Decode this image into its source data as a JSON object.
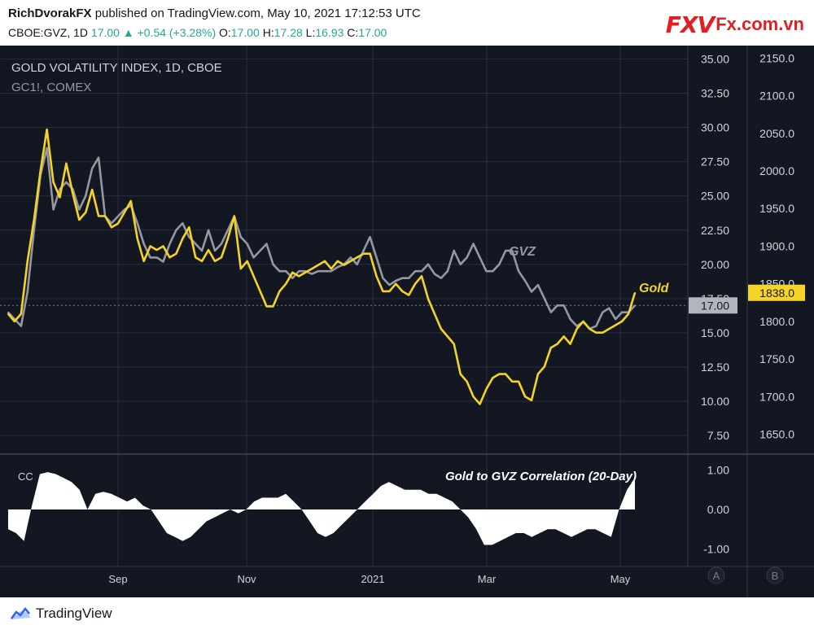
{
  "header": {
    "author": "RichDvorakFX",
    "published_text": "published on TradingView.com, May 10, 2021 17:12:53 UTC",
    "symbol": "CBOE:GVZ, 1D",
    "last": "17.00",
    "change": "+0.54 (+3.28%)",
    "o_label": "O:",
    "o_value": "17.00",
    "h_label": "H:",
    "h_value": "17.28",
    "l_label": "L:",
    "l_value": "16.93",
    "c_label": "C:",
    "c_value": "17.00"
  },
  "logo": {
    "brand": "FXV",
    "site": "Fx.com.vn"
  },
  "footer": {
    "brand": "TradingView"
  },
  "colors": {
    "gold": "#f5d327",
    "gvz": "#9598a1",
    "background": "#131722",
    "grid": "#2a2e39",
    "text": "#d1d4dc",
    "corr_fill": "#ffffff"
  },
  "chart_data": [
    {
      "type": "line",
      "title": "GOLD VOLATILITY INDEX, 1D, CBOE",
      "subtitle": "GC1!, COMEX",
      "x_tick_labels": [
        "Sep",
        "Nov",
        "2021",
        "Mar",
        "May"
      ],
      "y_left_ticks": [
        "35.00",
        "32.50",
        "30.00",
        "27.50",
        "25.00",
        "22.50",
        "20.00",
        "17.50",
        "15.00",
        "12.50",
        "10.00",
        "7.50"
      ],
      "y_right_ticks": [
        "2150.0",
        "2100.0",
        "2050.0",
        "2000.0",
        "1950.0",
        "1900.0",
        "1850.0",
        "1800.0",
        "1750.0",
        "1700.0",
        "1650.0"
      ],
      "ylim_gvz": [
        6.5,
        35.5
      ],
      "ylim_gold": [
        1630,
        2158
      ],
      "last_gvz": "17.00",
      "last_gold": "1838.0",
      "annotations": [
        "GVZ",
        "Gold"
      ],
      "series": [
        {
          "name": "GVZ",
          "axis": "left",
          "values": [
            16.5,
            16.0,
            15.5,
            18.0,
            22.5,
            26.5,
            28.5,
            24.0,
            25.5,
            26.0,
            25.5,
            24.0,
            25.0,
            27.0,
            27.8,
            23.5,
            23.0,
            23.5,
            24.0,
            24.3,
            23.0,
            21.5,
            20.5,
            20.5,
            20.2,
            21.5,
            22.5,
            23.0,
            22.0,
            21.5,
            21.0,
            22.5,
            21.0,
            21.5,
            22.5,
            23.5,
            22.0,
            21.5,
            20.5,
            21.0,
            21.5,
            20.0,
            19.5,
            19.5,
            19.0,
            19.5,
            19.5,
            19.3,
            19.5,
            19.5,
            19.5,
            19.8,
            20.0,
            20.5,
            20.0,
            21.0,
            22.0,
            20.5,
            19.0,
            18.5,
            18.8,
            19.0,
            19.0,
            19.5,
            19.5,
            20.0,
            19.3,
            19.0,
            19.5,
            21.0,
            20.0,
            20.5,
            21.5,
            20.5,
            19.5,
            19.5,
            20.0,
            21.0,
            21.0,
            19.5,
            18.8,
            18.0,
            18.5,
            17.5,
            16.5,
            17.0,
            17.0,
            16.0,
            15.5,
            15.8,
            15.3,
            15.5,
            16.5,
            16.8,
            16.0,
            16.5,
            16.5,
            17.0
          ]
        },
        {
          "name": "Gold",
          "axis": "right",
          "values": [
            1810,
            1800,
            1810,
            1880,
            1935,
            2000,
            2055,
            1985,
            1965,
            2010,
            1970,
            1935,
            1945,
            1975,
            1940,
            1940,
            1925,
            1930,
            1945,
            1960,
            1910,
            1880,
            1900,
            1895,
            1900,
            1885,
            1890,
            1910,
            1925,
            1885,
            1880,
            1895,
            1880,
            1885,
            1910,
            1940,
            1870,
            1880,
            1860,
            1840,
            1820,
            1820,
            1840,
            1850,
            1865,
            1860,
            1865,
            1870,
            1875,
            1880,
            1870,
            1880,
            1875,
            1880,
            1885,
            1890,
            1890,
            1860,
            1840,
            1840,
            1850,
            1840,
            1835,
            1850,
            1860,
            1830,
            1810,
            1790,
            1780,
            1770,
            1730,
            1720,
            1700,
            1690,
            1710,
            1725,
            1730,
            1730,
            1720,
            1720,
            1700,
            1695,
            1730,
            1740,
            1765,
            1770,
            1780,
            1770,
            1790,
            1800,
            1790,
            1785,
            1785,
            1790,
            1795,
            1800,
            1810,
            1838
          ]
        }
      ]
    },
    {
      "type": "area",
      "title": "Gold to GVZ Correlation (20-Day)",
      "label": "CC",
      "y_ticks": [
        "1.00",
        "0.00",
        "-1.00"
      ],
      "ylim": [
        -1.2,
        1.2
      ],
      "series": [
        {
          "name": "CC",
          "values": [
            -0.5,
            -0.6,
            -0.8,
            0.1,
            0.9,
            0.95,
            0.9,
            0.8,
            0.7,
            0.5,
            0.0,
            0.4,
            0.45,
            0.4,
            0.3,
            0.2,
            0.3,
            0.1,
            0.0,
            -0.3,
            -0.6,
            -0.7,
            -0.8,
            -0.7,
            -0.5,
            -0.3,
            -0.2,
            -0.1,
            0.0,
            -0.1,
            0.0,
            0.2,
            0.3,
            0.3,
            0.3,
            0.4,
            0.2,
            0.0,
            -0.3,
            -0.6,
            -0.7,
            -0.6,
            -0.4,
            -0.2,
            0.0,
            0.2,
            0.4,
            0.6,
            0.7,
            0.6,
            0.5,
            0.5,
            0.5,
            0.4,
            0.4,
            0.3,
            0.2,
            0.0,
            -0.2,
            -0.5,
            -0.9,
            -0.9,
            -0.8,
            -0.7,
            -0.6,
            -0.6,
            -0.7,
            -0.6,
            -0.5,
            -0.5,
            -0.6,
            -0.7,
            -0.6,
            -0.5,
            -0.5,
            -0.6,
            -0.7,
            0.0,
            0.5,
            0.8
          ]
        }
      ]
    }
  ]
}
